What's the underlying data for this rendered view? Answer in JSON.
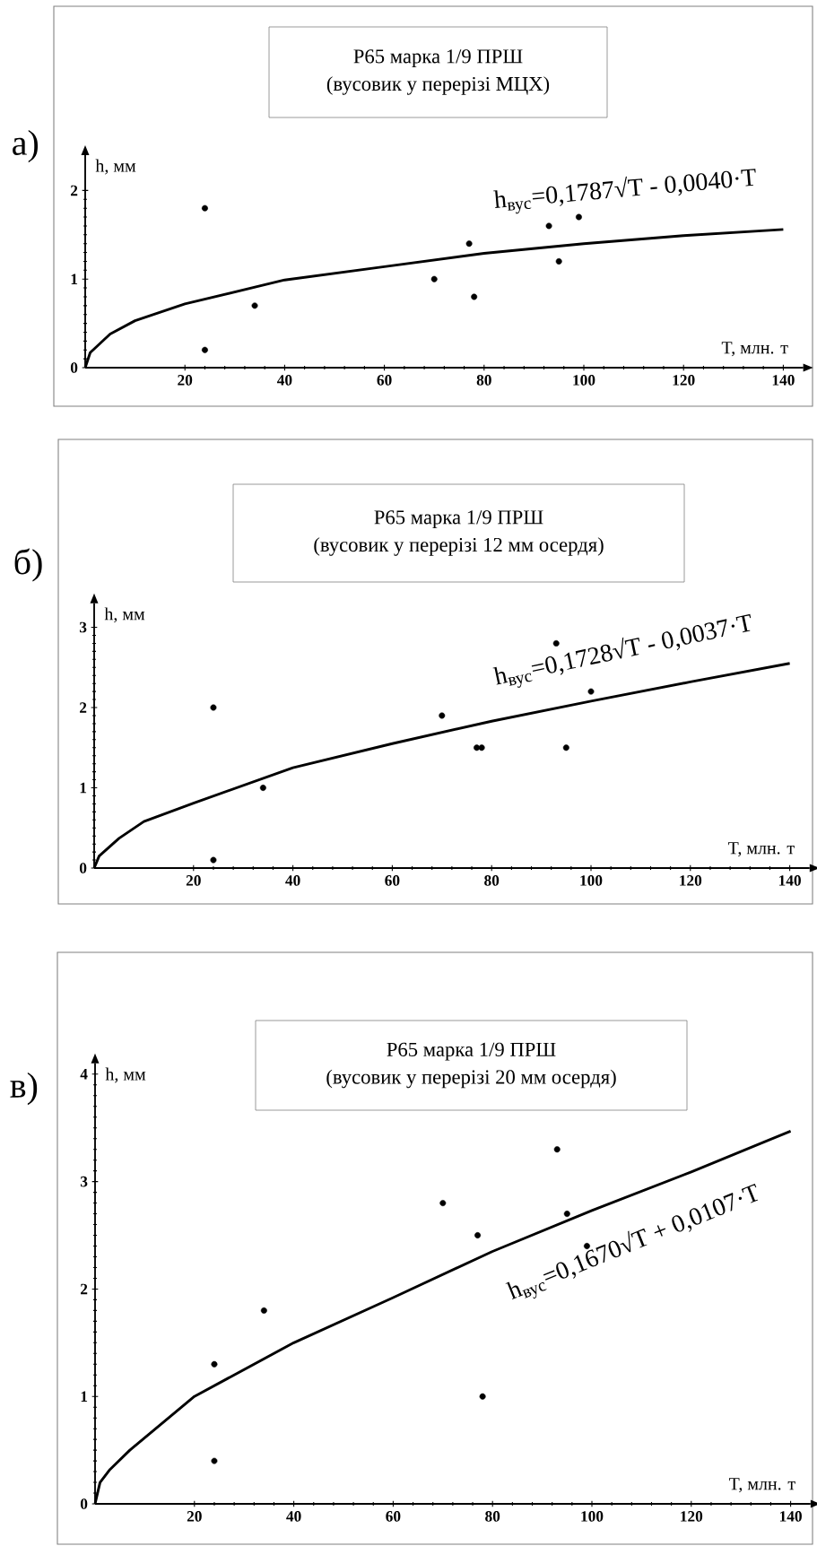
{
  "chart_data": [
    {
      "type": "scatter",
      "title": "Р65 марка 1/9  ПРШ",
      "subtitle": "(вусовик у перерізі МЦХ)",
      "xlabel": "T, млн. т",
      "ylabel": "h, мм",
      "annotations": [
        "а)"
      ],
      "xlim": [
        0,
        144
      ],
      "ylim": [
        0,
        2.4
      ],
      "xticks": [
        20,
        40,
        60,
        80,
        100,
        120,
        140
      ],
      "yticks": [
        0,
        1,
        2
      ],
      "series": [
        {
          "type": "scatter",
          "marker": "circle",
          "color": "#000000",
          "x": [
            24,
            24,
            34,
            70,
            77,
            78,
            93,
            95,
            99
          ],
          "values": [
            1.8,
            0.2,
            0.7,
            1.0,
            1.4,
            0.8,
            1.6,
            1.2,
            1.7
          ]
        },
        {
          "type": "line",
          "marker": "none",
          "name": "h$_{вус}$=0,1787√T - 0,0040·T",
          "color": "#000000",
          "x": [
            0,
            1,
            5,
            10,
            20,
            40,
            60,
            80,
            100,
            120,
            140
          ],
          "values": [
            0,
            0.17,
            0.38,
            0.53,
            0.72,
            0.99,
            1.14,
            1.29,
            1.4,
            1.49,
            1.56
          ]
        }
      ]
    },
    {
      "type": "scatter",
      "title": "Р65 марка 1/9  ПРШ",
      "subtitle": "(вусовик у перерізі 12 мм осердя)",
      "xlabel": "T, млн. т",
      "ylabel": "h, мм",
      "annotations": [
        "б)"
      ],
      "xlim": [
        0,
        144
      ],
      "ylim": [
        0,
        3.3
      ],
      "xticks": [
        20,
        40,
        60,
        80,
        100,
        120,
        140
      ],
      "yticks": [
        0,
        1,
        2,
        3
      ],
      "series": [
        {
          "type": "scatter",
          "marker": "circle",
          "color": "#000000",
          "x": [
            24,
            24,
            34,
            70,
            77,
            78,
            93,
            95,
            100
          ],
          "values": [
            2.0,
            0.1,
            1.0,
            1.9,
            1.5,
            1.5,
            2.8,
            1.5,
            2.2
          ]
        },
        {
          "type": "line",
          "marker": "none",
          "name": "h$_{вус}$=0,1728√T - 0,0037·T",
          "color": "#000000",
          "x": [
            0,
            1,
            5,
            10,
            20,
            40,
            60,
            80,
            100,
            120,
            140
          ],
          "values": [
            0,
            0.15,
            0.37,
            0.58,
            0.81,
            1.25,
            1.55,
            1.83,
            2.08,
            2.32,
            2.55
          ]
        }
      ]
    },
    {
      "type": "scatter",
      "title": "Р65 марка 1/9 ПРШ",
      "subtitle": "(вусовик у перерізі 20 мм осердя)",
      "xlabel": "T, млн. т",
      "ylabel": "h, мм",
      "annotations": [
        "в)"
      ],
      "xlim": [
        0,
        144
      ],
      "ylim": [
        0,
        4.1
      ],
      "xticks": [
        20,
        40,
        60,
        80,
        100,
        120,
        140
      ],
      "yticks": [
        0,
        1,
        2,
        3,
        4
      ],
      "series": [
        {
          "type": "scatter",
          "marker": "circle",
          "color": "#000000",
          "x": [
            24,
            24,
            34,
            70,
            77,
            78,
            93,
            95,
            99
          ],
          "values": [
            1.3,
            0.4,
            1.8,
            2.8,
            2.5,
            1.0,
            3.3,
            2.7,
            2.4
          ]
        },
        {
          "type": "line",
          "marker": "none",
          "name": "h$_{вус}$=0,1670√T + 0,0107·T",
          "color": "#000000",
          "x": [
            0,
            1,
            3,
            7,
            20,
            40,
            60,
            80,
            100,
            120,
            140
          ],
          "values": [
            0,
            0.2,
            0.32,
            0.5,
            1.0,
            1.5,
            1.92,
            2.35,
            2.73,
            3.09,
            3.47
          ]
        }
      ]
    }
  ]
}
